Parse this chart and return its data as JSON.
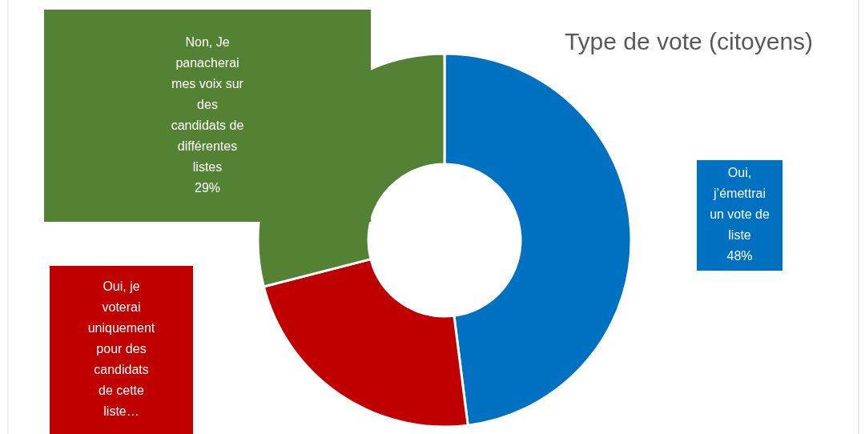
{
  "chart_data": {
    "type": "donut",
    "title": "Type de vote (citoyens)",
    "categories": [
      "Oui, j’émettrai un vote de liste",
      "Oui, je voterai uniquement pour des candidats de cette liste…",
      "Non, Je panacherai mes voix sur des candidats de différentes listes"
    ],
    "values": [
      48,
      23,
      29
    ],
    "colors": [
      "#0070c0",
      "#c00000",
      "#548235"
    ],
    "value_labels": [
      "48%",
      null,
      "29%"
    ]
  }
}
